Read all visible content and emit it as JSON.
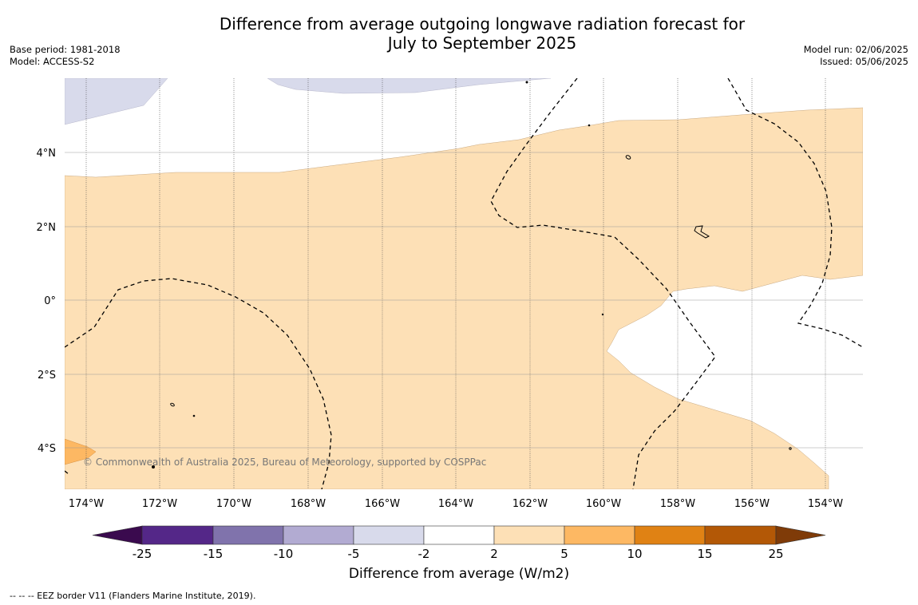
{
  "title_line1": "Difference from average outgoing longwave radiation forecast for",
  "title_line2": "July to September 2025",
  "meta_left": {
    "base_period": "Base period: 1981-2018",
    "model": "Model: ACCESS-S2"
  },
  "meta_right": {
    "model_run": "Model run: 02/06/2025",
    "issued": "Issued: 05/06/2025"
  },
  "map": {
    "lon_labels": [
      "174°W",
      "172°W",
      "170°W",
      "168°W",
      "166°W",
      "164°W",
      "162°W",
      "160°W",
      "158°W",
      "156°W",
      "154°W"
    ],
    "lat_labels": [
      "4°N",
      "2°N",
      "0°",
      "2°S",
      "4°S"
    ],
    "copyright": "© Commonwealth of Australia 2025, Bureau of Meteorology, supported by COSPPac"
  },
  "colorbar": {
    "ticks": [
      "-25",
      "-15",
      "-10",
      "-5",
      "-2",
      "2",
      "5",
      "10",
      "15",
      "25"
    ],
    "colors": [
      "#3a0a4e",
      "#542788",
      "#8073ac",
      "#b2abd2",
      "#d8daeb",
      "#ffffff",
      "#fde0b6",
      "#fdb863",
      "#e08214",
      "#b35806",
      "#7f3b08"
    ],
    "label": "Difference from average (W/m2)"
  },
  "footnote": "--  --  -- EEZ border V11 (Flanders Marine Institute, 2019)."
}
